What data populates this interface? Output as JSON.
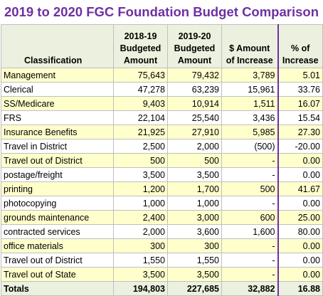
{
  "title": "2019 to 2020 FGC Foundation Budget Comparison",
  "headers": {
    "classification": "Classification",
    "col1": [
      "2018-19",
      "Budgeted",
      "Amount"
    ],
    "col2": [
      "2019-20",
      "Budgeted",
      "Amount"
    ],
    "col3": [
      "$ Amount",
      "of Increase"
    ],
    "col4": [
      "% of",
      "Increase"
    ]
  },
  "rows": [
    {
      "label": "Management",
      "a": "75,643",
      "b": "79,432",
      "inc": "3,789",
      "pct": "5.01",
      "shade": true
    },
    {
      "label": "Clerical",
      "a": "47,278",
      "b": "63,239",
      "inc": "15,961",
      "pct": "33.76",
      "shade": false
    },
    {
      "label": "SS/Medicare",
      "a": "9,403",
      "b": "10,914",
      "inc": "1,511",
      "pct": "16.07",
      "shade": true
    },
    {
      "label": "FRS",
      "a": "22,104",
      "b": "25,540",
      "inc": "3,436",
      "pct": "15.54",
      "shade": false
    },
    {
      "label": "Insurance Benefits",
      "a": "21,925",
      "b": "27,910",
      "inc": "5,985",
      "pct": "27.30",
      "shade": true
    },
    {
      "label": "Travel in District",
      "a": "2,500",
      "b": "2,000",
      "inc": "(500)",
      "pct": "-20.00",
      "shade": false
    },
    {
      "label": "Travel out of District",
      "a": "500",
      "b": "500",
      "inc": "-",
      "pct": "0.00",
      "shade": true
    },
    {
      "label": "postage/freight",
      "a": "3,500",
      "b": "3,500",
      "inc": "-",
      "pct": "0.00",
      "shade": false
    },
    {
      "label": "printing",
      "a": "1,200",
      "b": "1,700",
      "inc": "500",
      "pct": "41.67",
      "shade": true
    },
    {
      "label": "photocopying",
      "a": "1,000",
      "b": "1,000",
      "inc": "-",
      "pct": "0.00",
      "shade": false
    },
    {
      "label": "grounds maintenance",
      "a": "2,400",
      "b": "3,000",
      "inc": "600",
      "pct": "25.00",
      "shade": true
    },
    {
      "label": "contracted services",
      "a": "2,000",
      "b": "3,600",
      "inc": "1,600",
      "pct": "80.00",
      "shade": false
    },
    {
      "label": "office materials",
      "a": "300",
      "b": "300",
      "inc": "-",
      "pct": "0.00",
      "shade": true
    },
    {
      "label": "Travel out of District",
      "a": "1,550",
      "b": "1,550",
      "inc": "-",
      "pct": "0.00",
      "shade": false
    },
    {
      "label": "Travel out of State",
      "a": "3,500",
      "b": "3,500",
      "inc": "-",
      "pct": "0.00",
      "shade": true
    }
  ],
  "totals": {
    "label": "Totals",
    "a": "194,803",
    "b": "227,685",
    "inc": "32,882",
    "pct": "16.88"
  },
  "colors": {
    "title": "#7030a0",
    "row_shade": "#ffffcc",
    "header_bg": "#ebf1de",
    "divider": "#7030a0"
  }
}
